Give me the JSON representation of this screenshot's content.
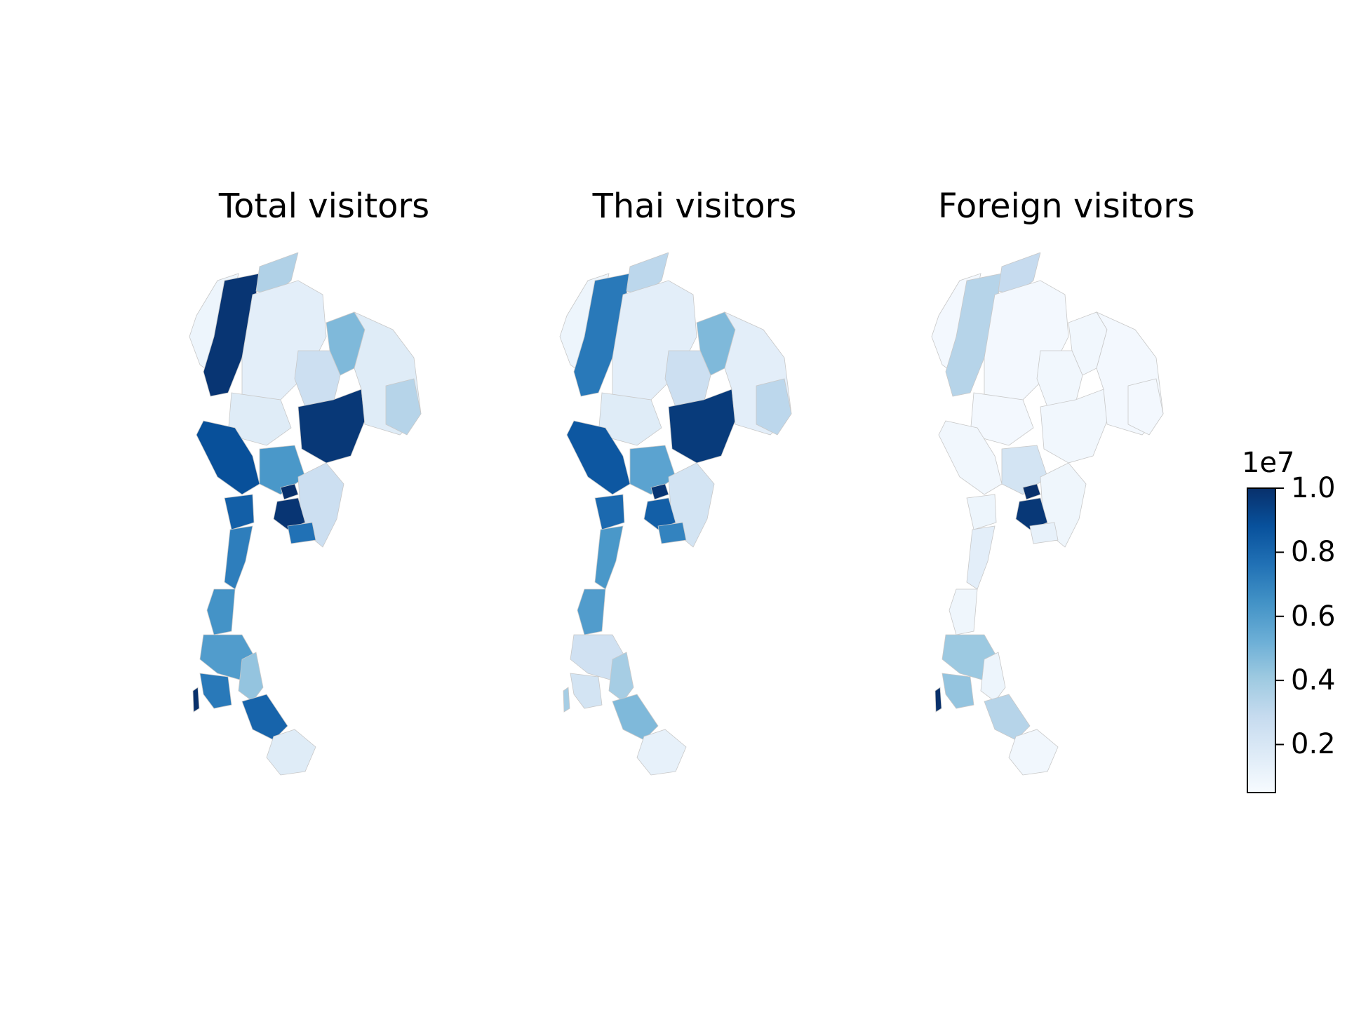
{
  "panels": [
    {
      "title": "Total visitors"
    },
    {
      "title": "Thai visitors"
    },
    {
      "title": "Foreign visitors"
    }
  ],
  "colorbar": {
    "exponent_label": "1e7",
    "ticks": [
      "1.0",
      "0.8",
      "0.6",
      "0.4",
      "0.2"
    ],
    "tick_values": [
      1.0,
      0.8,
      0.6,
      0.4,
      0.2
    ],
    "range": [
      0.05,
      1.0
    ],
    "colormap": "Blues"
  },
  "colors": {
    "ramp": [
      "#f7fbff",
      "#deebf7",
      "#c6dbef",
      "#9ecae1",
      "#6baed6",
      "#4292c6",
      "#2171b5",
      "#08519c",
      "#08306b"
    ],
    "border": "#c8c8c8"
  },
  "regions_levels": {
    "total": {
      "chiangmai": 0.98,
      "maehongson": 0.05,
      "chiangrai": 0.32,
      "north_rest": 0.1,
      "phitsanulok": 0.12,
      "kanchanaburi": 0.88,
      "nakhonratchasima": 0.97,
      "udon": 0.45,
      "khonkaen": 0.22,
      "isan_rest": 0.12,
      "ubon": 0.3,
      "bangkok_ring": 0.6,
      "bangkok": 1.0,
      "chonburi": 0.98,
      "rayong": 0.75,
      "phetchaburi": 0.82,
      "prachuap": 0.7,
      "chumphon": 0.62,
      "suratthani": 0.58,
      "phuket": 1.0,
      "krabi": 0.72,
      "nakhonsi": 0.4,
      "songkhla": 0.8,
      "south_rest": 0.12,
      "east_rest": 0.22
    },
    "thai": {
      "chiangmai": 0.72,
      "maehongson": 0.05,
      "chiangrai": 0.28,
      "north_rest": 0.1,
      "phitsanulok": 0.12,
      "kanchanaburi": 0.85,
      "nakhonratchasima": 0.96,
      "udon": 0.45,
      "khonkaen": 0.22,
      "isan_rest": 0.1,
      "ubon": 0.28,
      "bangkok_ring": 0.55,
      "bangkok": 0.98,
      "chonburi": 0.82,
      "rayong": 0.68,
      "phetchaburi": 0.78,
      "prachuap": 0.6,
      "chumphon": 0.58,
      "suratthani": 0.2,
      "phuket": 0.35,
      "krabi": 0.18,
      "nakhonsi": 0.35,
      "songkhla": 0.45,
      "south_rest": 0.08,
      "east_rest": 0.18
    },
    "foreign": {
      "chiangmai": 0.3,
      "maehongson": 0.02,
      "chiangrai": 0.25,
      "north_rest": 0.02,
      "phitsanulok": 0.02,
      "kanchanaburi": 0.03,
      "nakhonratchasima": 0.03,
      "udon": 0.03,
      "khonkaen": 0.03,
      "isan_rest": 0.02,
      "ubon": 0.02,
      "bangkok_ring": 0.18,
      "bangkok": 1.0,
      "chonburi": 0.97,
      "rayong": 0.08,
      "phetchaburi": 0.05,
      "prachuap": 0.1,
      "chumphon": 0.04,
      "suratthani": 0.38,
      "phuket": 1.0,
      "krabi": 0.4,
      "nakhonsi": 0.05,
      "songkhla": 0.3,
      "south_rest": 0.03,
      "east_rest": 0.04
    }
  }
}
